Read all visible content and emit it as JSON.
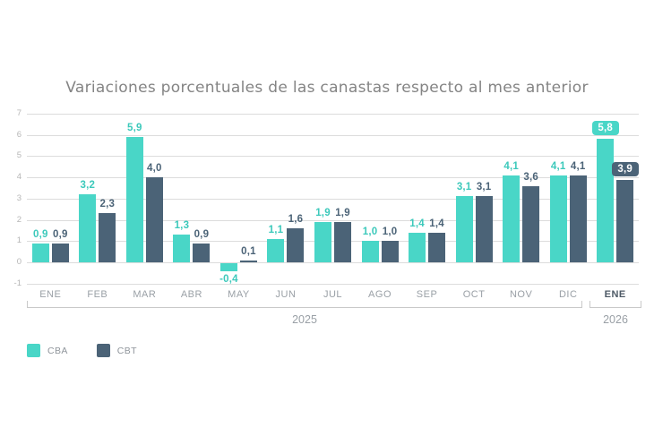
{
  "chart_data": {
    "type": "bar",
    "title": "Variaciones porcentuales de las canastas respecto al mes anterior",
    "categories": [
      "ENE",
      "FEB",
      "MAR",
      "ABR",
      "MAY",
      "JUN",
      "JUL",
      "AGO",
      "SEP",
      "OCT",
      "NOV",
      "DIC",
      "ENE"
    ],
    "series": [
      {
        "name": "CBA",
        "color": "#49d6c7",
        "label_color": "#3cc9bb",
        "values": [
          0.9,
          3.2,
          5.9,
          1.3,
          -0.4,
          1.1,
          1.9,
          1.0,
          1.4,
          3.1,
          4.1,
          4.1,
          5.8
        ]
      },
      {
        "name": "CBT",
        "color": "#4b6377",
        "label_color": "#4b6377",
        "values": [
          0.9,
          2.3,
          4.0,
          0.9,
          0.1,
          1.6,
          1.9,
          1.0,
          1.4,
          3.1,
          3.6,
          4.1,
          3.9
        ]
      }
    ],
    "yticks": [
      7,
      6,
      5,
      4,
      3,
      2,
      1,
      0,
      -1
    ],
    "ylim": [
      -1,
      7
    ],
    "grid": true,
    "decimal_separator": ",",
    "last_group_badges": true,
    "legend_position": "bottom-left",
    "year_groups": [
      {
        "label": "2025",
        "from": 0,
        "to": 11
      },
      {
        "label": "2026",
        "from": 12,
        "to": 12
      }
    ]
  }
}
